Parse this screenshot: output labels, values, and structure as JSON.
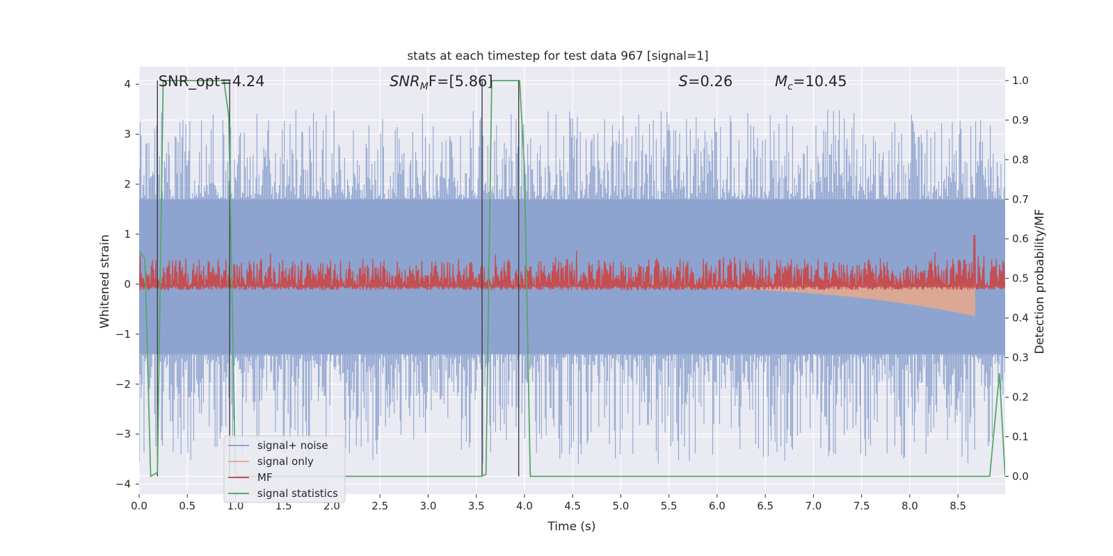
{
  "chart_data": {
    "type": "line",
    "title": "stats at each timestep for test data 967 [signal=1]",
    "xlabel": "Time (s)",
    "ylabel_left": "Whitened strain",
    "ylabel_right": "Detection probability/MF",
    "xlim": [
      0.0,
      8.99
    ],
    "ylim_left": [
      -4.2,
      4.35
    ],
    "ylim_right": [
      -0.045,
      1.035
    ],
    "x_ticks": [
      "0.0",
      "0.5",
      "1.0",
      "1.5",
      "2.0",
      "2.5",
      "3.0",
      "3.5",
      "4.0",
      "4.5",
      "5.0",
      "5.5",
      "6.0",
      "6.5",
      "7.0",
      "7.5",
      "8.0",
      "8.5"
    ],
    "y_left_ticks": [
      "−4",
      "−3",
      "−2",
      "−1",
      "0",
      "1",
      "2",
      "3",
      "4"
    ],
    "y_right_ticks": [
      "0.0",
      "0.1",
      "0.2",
      "0.3",
      "0.4",
      "0.5",
      "0.6",
      "0.7",
      "0.8",
      "0.9",
      "1.0"
    ],
    "grid": true,
    "legend_position": "lower-left",
    "annotations": [
      {
        "prefix": "SNR_opt=4.24",
        "sub": "",
        "suffix": "",
        "x": 0.2
      },
      {
        "prefix": "SNR",
        "sub": "M",
        "suffix": "F=[5.86]",
        "x": 2.6
      },
      {
        "prefix": "S",
        "sub": "",
        "suffix": "=0.26",
        "x": 5.6
      },
      {
        "prefix": "M",
        "sub": "c",
        "suffix": "=10.45",
        "x": 6.6
      }
    ],
    "vertical_markers": [
      0.19,
      0.94,
      3.56,
      3.94
    ],
    "series": [
      {
        "name": "signal+ noise",
        "axis": "left",
        "color": "#8da3cf",
        "kind": "noise",
        "envelope_upper": 1.7,
        "envelope_lower": -1.4,
        "spike_max": 3.5,
        "spike_min": -3.6
      },
      {
        "name": "signal only",
        "axis": "left",
        "color": "#e7a98b",
        "kind": "chirp",
        "start": 4.0,
        "end": 8.68,
        "amp_end": -0.6
      },
      {
        "name": "MF",
        "axis": "right",
        "color": "#c44e52",
        "kind": "mf",
        "base": 0.47,
        "band_low": 0.48,
        "band_high": 0.55,
        "peak_x": 8.67,
        "peak_y": 0.61
      },
      {
        "name": "signal statistics",
        "axis": "right",
        "color": "#55a868",
        "kind": "line",
        "x": [
          0.0,
          0.06,
          0.12,
          0.19,
          0.25,
          0.3,
          0.88,
          0.93,
          1.0,
          1.5,
          3.0,
          3.55,
          3.6,
          3.66,
          3.95,
          4.0,
          4.06,
          8.5,
          8.83,
          8.93,
          8.99
        ],
        "y": [
          0.57,
          0.55,
          0.0,
          0.01,
          1.0,
          1.0,
          1.0,
          0.91,
          0.0,
          0.0,
          0.0,
          0.0,
          0.005,
          1.0,
          1.0,
          0.78,
          0.0,
          0.0,
          0.0,
          0.26,
          0.0
        ]
      }
    ]
  }
}
